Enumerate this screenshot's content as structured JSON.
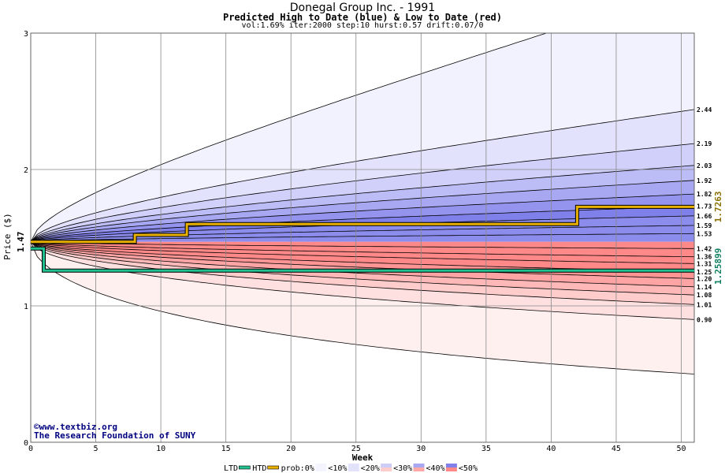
{
  "title": "Donegal Group Inc. - 1991",
  "subtitle": "Predicted High to Date (blue) &  Low to Date (red)",
  "params": "vol:1.69% iter:2000 step:10 hurst:0.57 drift:0.07/0",
  "watermark": {
    "copyright": "©www.textbiz.org",
    "org": "The Research Foundation of SUNY"
  },
  "chart_data": {
    "type": "area",
    "xlabel": "Week",
    "ylabel": "Price ($)",
    "xlim": [
      0,
      51
    ],
    "ylim": [
      0,
      3
    ],
    "x_ticks": [
      0,
      5,
      10,
      15,
      20,
      25,
      30,
      35,
      40,
      45,
      50
    ],
    "y_ticks": [
      0,
      1,
      2,
      3
    ],
    "grid": true,
    "start_price": "1.47",
    "ltd_value": "1.25899",
    "htd_value": "1.7263",
    "right_labels": [
      "2.44",
      "2.19",
      "2.03",
      "1.92",
      "1.82",
      "1.73",
      "1.66",
      "1.59",
      "1.53",
      "1.42",
      "1.36",
      "1.31",
      "1.25",
      "1.20",
      "1.14",
      "1.08",
      "1.01",
      "0.90"
    ],
    "percentile_bands": [
      {
        "name": "high-0",
        "end": 3.35,
        "kind": "high"
      },
      {
        "name": "high-1",
        "end": 2.44,
        "kind": "high"
      },
      {
        "name": "high-2",
        "end": 2.19,
        "kind": "high"
      },
      {
        "name": "high-3",
        "end": 2.03,
        "kind": "high"
      },
      {
        "name": "high-4",
        "end": 1.92,
        "kind": "high"
      },
      {
        "name": "high-5",
        "end": 1.82,
        "kind": "high"
      },
      {
        "name": "high-6",
        "end": 1.73,
        "kind": "high"
      },
      {
        "name": "high-7",
        "end": 1.66,
        "kind": "high"
      },
      {
        "name": "high-8",
        "end": 1.59,
        "kind": "high"
      },
      {
        "name": "high-9",
        "end": 1.53,
        "kind": "high"
      },
      {
        "name": "low-0",
        "end": 1.42,
        "kind": "low"
      },
      {
        "name": "low-1",
        "end": 1.36,
        "kind": "low"
      },
      {
        "name": "low-2",
        "end": 1.31,
        "kind": "low"
      },
      {
        "name": "low-3",
        "end": 1.25,
        "kind": "low"
      },
      {
        "name": "low-4",
        "end": 1.2,
        "kind": "low"
      },
      {
        "name": "low-5",
        "end": 1.14,
        "kind": "low"
      },
      {
        "name": "low-6",
        "end": 1.08,
        "kind": "low"
      },
      {
        "name": "low-7",
        "end": 1.01,
        "kind": "low"
      },
      {
        "name": "low-8",
        "end": 0.9,
        "kind": "low"
      },
      {
        "name": "low-9",
        "end": 0.5,
        "kind": "low"
      }
    ],
    "htd_series": {
      "x": [
        0,
        8,
        8,
        12,
        12,
        42,
        42,
        51
      ],
      "y": [
        1.47,
        1.47,
        1.52,
        1.52,
        1.6,
        1.6,
        1.7263,
        1.7263
      ]
    },
    "ltd_series": {
      "x": [
        0,
        1,
        1,
        51
      ],
      "y": [
        1.42,
        1.42,
        1.25899,
        1.25899
      ]
    },
    "legend": {
      "items": [
        "LTD",
        "HTD",
        "prob:0%",
        "<10%",
        "<20%",
        "<30%",
        "<40%",
        "<50%"
      ],
      "placement": "bottom"
    },
    "colors": {
      "ltd": "#20c090",
      "htd": "#e8b000",
      "htd_label": "#8a7000",
      "ltd_label": "#108060",
      "watermark": "#000080",
      "blue_scale": [
        "#f2f2fe",
        "#e2e2fc",
        "#d0d0fa",
        "#bcbcf6",
        "#a8a8f2",
        "#9494ee",
        "#8080ea",
        "#8c8cec"
      ],
      "red_scale": [
        "#fff0f0",
        "#ffe0e0",
        "#ffcccc",
        "#ffb8b8",
        "#ffa4a4",
        "#ff9494",
        "#ff8888"
      ]
    }
  }
}
